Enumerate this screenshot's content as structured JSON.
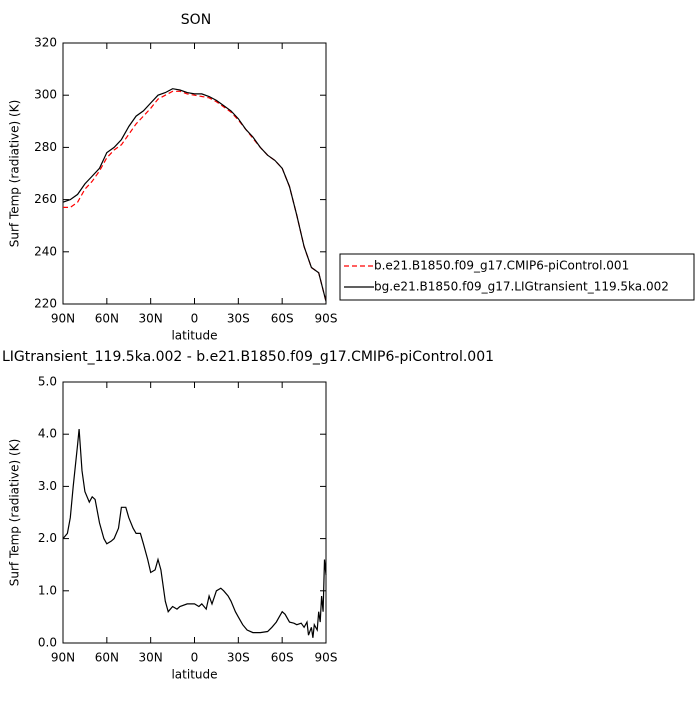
{
  "chart_data": [
    {
      "type": "line",
      "title": "SON",
      "xlabel": "latitude",
      "ylabel": "Surf Temp (radiative) (K)",
      "x": [
        90,
        85,
        80,
        75,
        70,
        65,
        60,
        55,
        50,
        45,
        40,
        35,
        30,
        25,
        20,
        15,
        10,
        5,
        0,
        -5,
        -10,
        -15,
        -20,
        -25,
        -30,
        -35,
        -40,
        -45,
        -50,
        -55,
        -60,
        -65,
        -70,
        -75,
        -80,
        -85,
        -90
      ],
      "series": [
        {
          "name": "b.e21.B1850.f09_g17.CMIP6-piControl.001",
          "color": "#ff0000",
          "linestyle": "dashed",
          "values": [
            257,
            257,
            259,
            264,
            267,
            271,
            276,
            279,
            281,
            285,
            289,
            292,
            295,
            298.5,
            300,
            301.5,
            301.5,
            300.5,
            300,
            299.5,
            299,
            297.5,
            295.5,
            293.5,
            290.5,
            287,
            283.5,
            280,
            277,
            275,
            272,
            265,
            254,
            242,
            234,
            232,
            221
          ]
        },
        {
          "name": "bg.e21.B1850.f09_g17.LIGtransient_119.5ka.002",
          "color": "#000000",
          "linestyle": "solid",
          "values": [
            259,
            260,
            262,
            266,
            269,
            272,
            278,
            280,
            283,
            288,
            292,
            294,
            297,
            300,
            301,
            302.5,
            302,
            301,
            300.5,
            300.5,
            299.5,
            298,
            296,
            294,
            291,
            287,
            284,
            280,
            277,
            275,
            272,
            265,
            254,
            242,
            234,
            232,
            221
          ]
        }
      ],
      "xlim": [
        90,
        -90
      ],
      "xticks": [
        {
          "value": 90,
          "label": "90N"
        },
        {
          "value": 60,
          "label": "60N"
        },
        {
          "value": 30,
          "label": "30N"
        },
        0,
        {
          "value": -30,
          "label": "30S"
        },
        {
          "value": -60,
          "label": "60S"
        },
        {
          "value": -90,
          "label": "90S"
        }
      ],
      "ylim": [
        220,
        320
      ],
      "yticks": [
        220,
        240,
        260,
        280,
        300,
        320
      ],
      "legend": "outside-right"
    },
    {
      "type": "line",
      "title": "LIGtransient_119.5ka.002 - b.e21.B1850.f09_g17.CMIP6-piControl.001",
      "xlabel": "latitude",
      "ylabel": "Surf Temp (radiative) (K)",
      "x": [
        90,
        87,
        85,
        83,
        80,
        79,
        77,
        75,
        72,
        70,
        68,
        65,
        62,
        60,
        57,
        55,
        52,
        50,
        47,
        45,
        42,
        40,
        37,
        35,
        32,
        30,
        27,
        25,
        23,
        20,
        18,
        15,
        12,
        10,
        5,
        0,
        -3,
        -5,
        -8,
        -10,
        -12,
        -15,
        -18,
        -20,
        -23,
        -25,
        -28,
        -30,
        -33,
        -36,
        -40,
        -45,
        -50,
        -53,
        -56,
        -58,
        -60,
        -62,
        -65,
        -68,
        -70,
        -73,
        -75,
        -77,
        -78,
        -80,
        -81,
        -82,
        -84,
        -85,
        -86,
        -87,
        -88,
        -89,
        -90
      ],
      "series": [
        {
          "color": "#000000",
          "linestyle": "solid",
          "values": [
            2.0,
            2.1,
            2.4,
            3.0,
            3.8,
            4.1,
            3.3,
            2.9,
            2.7,
            2.8,
            2.75,
            2.3,
            2.0,
            1.9,
            1.95,
            2.0,
            2.2,
            2.6,
            2.6,
            2.4,
            2.2,
            2.1,
            2.1,
            1.9,
            1.6,
            1.35,
            1.4,
            1.6,
            1.4,
            0.8,
            0.6,
            0.7,
            0.65,
            0.7,
            0.75,
            0.75,
            0.7,
            0.75,
            0.65,
            0.9,
            0.75,
            1.0,
            1.05,
            1.0,
            0.9,
            0.8,
            0.6,
            0.5,
            0.35,
            0.25,
            0.2,
            0.2,
            0.22,
            0.3,
            0.4,
            0.5,
            0.6,
            0.55,
            0.4,
            0.38,
            0.35,
            0.38,
            0.3,
            0.4,
            0.15,
            0.3,
            0.1,
            0.35,
            0.25,
            0.6,
            0.4,
            0.9,
            0.6,
            1.6,
            1.3
          ]
        }
      ],
      "xlim": [
        90,
        -90
      ],
      "xticks": [
        {
          "value": 90,
          "label": "90N"
        },
        {
          "value": 60,
          "label": "60N"
        },
        {
          "value": 30,
          "label": "30N"
        },
        0,
        {
          "value": -30,
          "label": "30S"
        },
        {
          "value": -60,
          "label": "60S"
        },
        {
          "value": -90,
          "label": "90S"
        }
      ],
      "ylim": [
        0,
        5
      ],
      "yticks": [
        {
          "value": 0,
          "label": "0.0"
        },
        {
          "value": 1,
          "label": "1.0"
        },
        {
          "value": 2,
          "label": "2.0"
        },
        {
          "value": 3,
          "label": "3.0"
        },
        {
          "value": 4,
          "label": "4.0"
        },
        {
          "value": 5,
          "label": "5.0"
        }
      ]
    }
  ]
}
